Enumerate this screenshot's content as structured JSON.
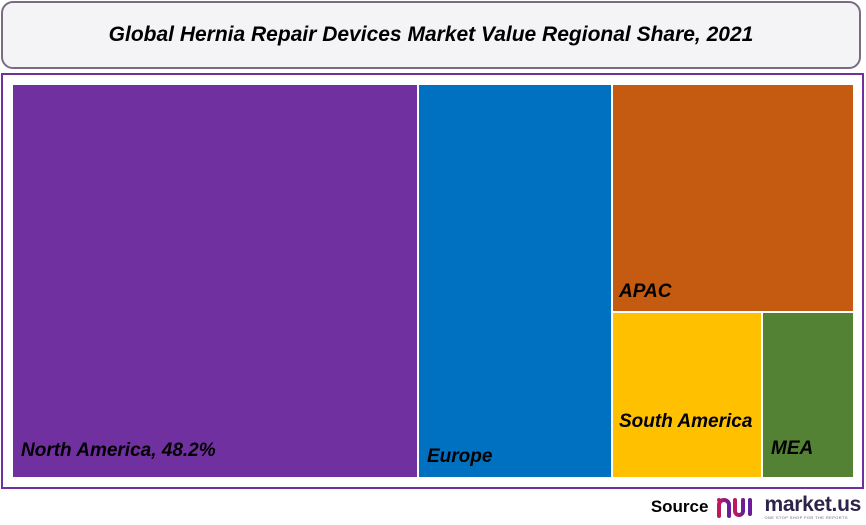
{
  "chart_data": {
    "type": "treemap",
    "title": "Global Hernia Repair Devices Market Value Regional Share, 2021",
    "series": [
      {
        "name": "North America",
        "label": "North America, 48.2%",
        "value": 48.2,
        "color": "#7030a0"
      },
      {
        "name": "Europe",
        "label": "Europe",
        "color": "#0070c0"
      },
      {
        "name": "APAC",
        "label": "APAC",
        "color": "#c55a11"
      },
      {
        "name": "South America",
        "label": "South America",
        "color": "#ffc000"
      },
      {
        "name": "MEA",
        "label": "MEA",
        "color": "#548235"
      }
    ]
  },
  "source": {
    "label": "Source",
    "brand": "market.us",
    "tagline": "ONE STOP SHOP FOR THE REPORTS"
  }
}
